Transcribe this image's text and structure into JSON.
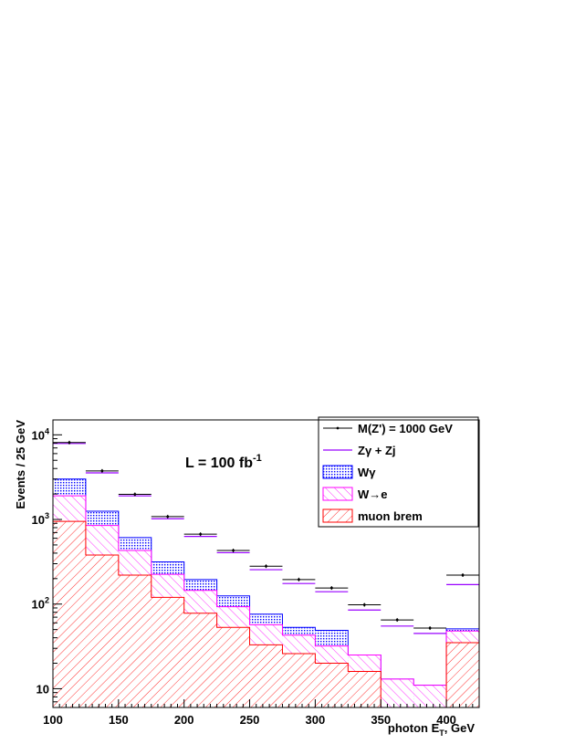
{
  "chart_data": {
    "type": "histogram",
    "title": "",
    "annotation": {
      "base": "L = 100 fb",
      "sup": "-1"
    },
    "xlabel": {
      "base": "photon E",
      "sub": "T",
      "rest": ", GeV"
    },
    "ylabel": "Events / 25 GeV",
    "xlim": [
      100,
      425
    ],
    "ylim": [
      6,
      15000
    ],
    "yscale": "log",
    "grid": false,
    "legend_position": "top-right",
    "x_ticks": [
      100,
      150,
      200,
      250,
      300,
      350,
      400
    ],
    "y_ticks": [
      {
        "value": 10,
        "base": "10",
        "sup": ""
      },
      {
        "value": 100,
        "base": "10",
        "sup": "2"
      },
      {
        "value": 1000,
        "base": "10",
        "sup": "3"
      },
      {
        "value": 10000,
        "base": "10",
        "sup": "4"
      }
    ],
    "bin_edges": [
      100,
      125,
      150,
      175,
      200,
      225,
      250,
      275,
      300,
      325,
      350,
      375,
      400,
      425
    ],
    "series": [
      {
        "name": "muon brem",
        "kind": "hatched",
        "color": "#ff0000",
        "hatch": "diag-right",
        "values": [
          950,
          380,
          220,
          120,
          78,
          53,
          33,
          26,
          20,
          16,
          6,
          6,
          35
        ]
      },
      {
        "name": "W→e",
        "kind": "hatched",
        "color": "#ff00ff",
        "hatch": "diag-left",
        "values": [
          1900,
          850,
          430,
          225,
          145,
          93,
          57,
          43,
          32,
          25,
          13,
          11,
          48
        ]
      },
      {
        "name": "Wγ",
        "kind": "dotted",
        "color": "#0000ff",
        "values": [
          3000,
          1250,
          610,
          315,
          195,
          125,
          76,
          53,
          49,
          25,
          13,
          11,
          51
        ]
      },
      {
        "name": "Zγ + Zj",
        "kind": "line",
        "color": "#9900ff",
        "values": [
          7900,
          3550,
          1900,
          1020,
          630,
          405,
          255,
          175,
          140,
          85,
          55,
          45,
          170
        ]
      },
      {
        "name": "M(Z') = 1000 GeV",
        "kind": "points",
        "color": "#000000",
        "x": [
          112.5,
          137.5,
          162.5,
          187.5,
          212.5,
          237.5,
          262.5,
          287.5,
          312.5,
          337.5,
          362.5,
          387.5,
          412.5
        ],
        "values": [
          8100,
          3750,
          1980,
          1080,
          670,
          430,
          280,
          195,
          155,
          98,
          65,
          52,
          220
        ]
      }
    ],
    "legend_order": [
      "M(Z') = 1000 GeV",
      "Zγ + Zj",
      "Wγ",
      "W→e",
      "muon brem"
    ]
  }
}
